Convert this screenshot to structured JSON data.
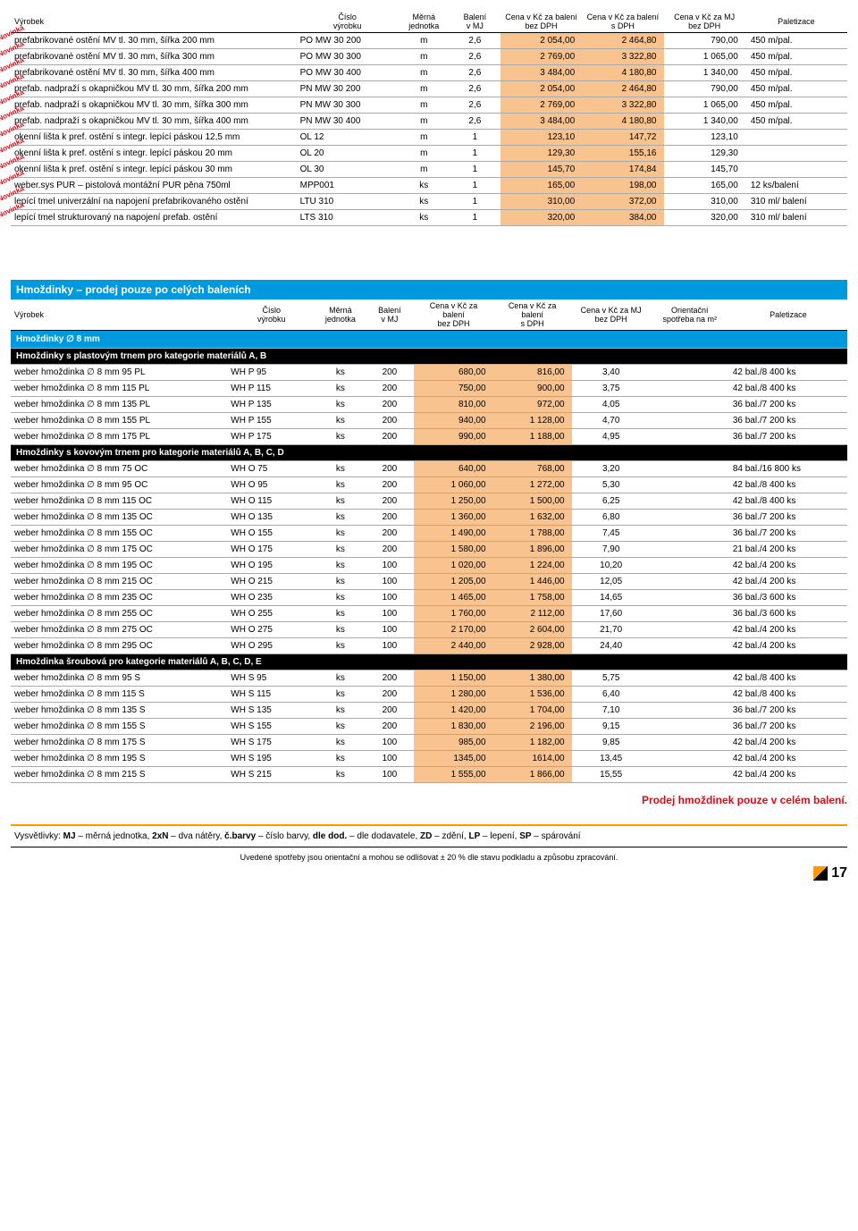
{
  "h1": [
    "Výrobek",
    "Číslo výrobku",
    "Měrná jednotka",
    "Balení v MJ",
    "Cena v Kč za balení bez DPH",
    "Cena v Kč za balení s DPH",
    "Cena v Kč za MJ bez DPH",
    "Paletizace"
  ],
  "t1": [
    [
      "prefabrikované ostění MV tl. 30 mm, šířka 200 mm",
      "PO MW 30 200",
      "m",
      "2,6",
      "2 054,00",
      "2 464,80",
      "790,00",
      "450 m/pal."
    ],
    [
      "prefabrikované ostění MV tl. 30 mm, šířka 300 mm",
      "PO MW 30 300",
      "m",
      "2,6",
      "2 769,00",
      "3 322,80",
      "1 065,00",
      "450 m/pal."
    ],
    [
      "prefabrikované ostění MV tl. 30 mm, šířka 400 mm",
      "PO MW 30 400",
      "m",
      "2,6",
      "3 484,00",
      "4 180,80",
      "1 340,00",
      "450 m/pal."
    ],
    [
      "prefab. nadpraží s okapničkou MV tl. 30 mm, šířka 200 mm",
      "PN MW 30 200",
      "m",
      "2,6",
      "2 054,00",
      "2 464,80",
      "790,00",
      "450 m/pal."
    ],
    [
      "prefab. nadpraží s okapničkou MV tl. 30 mm, šířka 300 mm",
      "PN MW 30 300",
      "m",
      "2,6",
      "2 769,00",
      "3 322,80",
      "1 065,00",
      "450 m/pal."
    ],
    [
      "prefab. nadpraží s okapničkou MV tl. 30 mm, šířka 400 mm",
      "PN MW 30 400",
      "m",
      "2,6",
      "3 484,00",
      "4 180,80",
      "1 340,00",
      "450 m/pal."
    ],
    [
      "okenní lišta k pref. ostění s integr. lepící páskou 12,5 mm",
      "OL 12",
      "m",
      "1",
      "123,10",
      "147,72",
      "123,10",
      ""
    ],
    [
      "okenní lišta k pref. ostění s integr. lepící páskou 20 mm",
      "OL 20",
      "m",
      "1",
      "129,30",
      "155,16",
      "129,30",
      ""
    ],
    [
      "okenní lišta k pref. ostění s integr. lepící páskou 30 mm",
      "OL 30",
      "m",
      "1",
      "145,70",
      "174,84",
      "145,70",
      ""
    ],
    [
      "weber.sys PUR – pistolová montážní PUR pěna 750ml",
      "MPP001",
      "ks",
      "1",
      "165,00",
      "198,00",
      "165,00",
      "12 ks/balení"
    ],
    [
      "lepící tmel univerzální na napojení prefabrikovaného ostění",
      "LTU 310",
      "ks",
      "1",
      "310,00",
      "372,00",
      "310,00",
      "310 ml/ balení"
    ],
    [
      "lepící tmel strukturovaný na napojení prefab. ostění",
      "LTS 310",
      "ks",
      "1",
      "320,00",
      "384,00",
      "320,00",
      "310 ml/ balení"
    ]
  ],
  "blueTitle": "Hmoždinky – prodej pouze po celých baleních",
  "h2": [
    "Výrobek",
    "Číslo výrobku",
    "Měrná jednotka",
    "Balení v MJ",
    "Cena v Kč za balení bez DPH",
    "Cena v Kč za balení s DPH",
    "Cena v Kč za MJ bez DPH",
    "Orientační spotřeba na m²",
    "Paletizace"
  ],
  "cat1": "Hmoždinky ∅ 8 mm",
  "sub1": "Hmoždinky s plastovým trnem pro kategorie materiálů A, B",
  "g1": [
    [
      "weber hmoždinka ∅ 8 mm 95 PL",
      "WH P 95",
      "ks",
      "200",
      "680,00",
      "816,00",
      "3,40",
      "",
      "42 bal./8 400 ks"
    ],
    [
      "weber hmoždinka ∅ 8 mm 115 PL",
      "WH P 115",
      "ks",
      "200",
      "750,00",
      "900,00",
      "3,75",
      "",
      "42 bal./8 400 ks"
    ],
    [
      "weber hmoždinka ∅ 8 mm 135 PL",
      "WH P 135",
      "ks",
      "200",
      "810,00",
      "972,00",
      "4,05",
      "",
      "36 bal./7 200 ks"
    ],
    [
      "weber hmoždinka ∅ 8 mm 155 PL",
      "WH P 155",
      "ks",
      "200",
      "940,00",
      "1 128,00",
      "4,70",
      "",
      "36 bal./7 200 ks"
    ],
    [
      "weber hmoždinka ∅ 8 mm 175 PL",
      "WH P 175",
      "ks",
      "200",
      "990,00",
      "1 188,00",
      "4,95",
      "",
      "36 bal./7 200 ks"
    ]
  ],
  "sub2": "Hmoždinky s kovovým trnem pro kategorie materiálů A, B, C, D",
  "g2": [
    [
      "weber hmoždinka ∅ 8 mm 75 OC",
      "WH O 75",
      "ks",
      "200",
      "640,00",
      "768,00",
      "3,20",
      "",
      "84 bal./16 800 ks"
    ],
    [
      "weber hmoždinka ∅ 8 mm 95 OC",
      "WH O 95",
      "ks",
      "200",
      "1 060,00",
      "1 272,00",
      "5,30",
      "",
      "42 bal./8 400 ks"
    ],
    [
      "weber hmoždinka ∅ 8 mm 115 OC",
      "WH O 115",
      "ks",
      "200",
      "1 250,00",
      "1 500,00",
      "6,25",
      "",
      "42 bal./8 400 ks"
    ],
    [
      "weber hmoždinka ∅ 8 mm 135 OC",
      "WH O 135",
      "ks",
      "200",
      "1 360,00",
      "1 632,00",
      "6,80",
      "",
      "36 bal./7 200 ks"
    ],
    [
      "weber hmoždinka ∅ 8 mm 155 OC",
      "WH O 155",
      "ks",
      "200",
      "1 490,00",
      "1 788,00",
      "7,45",
      "",
      "36 bal./7 200 ks"
    ],
    [
      "weber hmoždinka ∅ 8 mm 175 OC",
      "WH O 175",
      "ks",
      "200",
      "1 580,00",
      "1 896,00",
      "7,90",
      "",
      "21 bal./4 200 ks"
    ],
    [
      "weber hmoždinka ∅ 8 mm 195 OC",
      "WH O 195",
      "ks",
      "100",
      "1 020,00",
      "1 224,00",
      "10,20",
      "",
      "42 bal./4 200 ks"
    ],
    [
      "weber hmoždinka ∅ 8 mm 215 OC",
      "WH O 215",
      "ks",
      "100",
      "1 205,00",
      "1 446,00",
      "12,05",
      "",
      "42 bal./4 200 ks"
    ],
    [
      "weber hmoždinka ∅ 8 mm 235 OC",
      "WH O 235",
      "ks",
      "100",
      "1 465,00",
      "1 758,00",
      "14,65",
      "",
      "36 bal./3 600 ks"
    ],
    [
      "weber hmoždinka ∅ 8 mm 255 OC",
      "WH O 255",
      "ks",
      "100",
      "1 760,00",
      "2 112,00",
      "17,60",
      "",
      "36 bal./3 600 ks"
    ],
    [
      "weber hmoždinka ∅ 8 mm 275 OC",
      "WH O 275",
      "ks",
      "100",
      "2 170,00",
      "2 604,00",
      "21,70",
      "",
      "42 bal./4 200 ks"
    ],
    [
      "weber hmoždinka ∅ 8 mm 295 OC",
      "WH O 295",
      "ks",
      "100",
      "2 440,00",
      "2 928,00",
      "24,40",
      "",
      "42 bal./4 200 ks"
    ]
  ],
  "sub3": "Hmoždinka šroubová pro kategorie materiálů A, B, C, D, E",
  "g3": [
    [
      "weber hmoždinka ∅ 8 mm 95 S",
      "WH S 95",
      "ks",
      "200",
      "1 150,00",
      "1 380,00",
      "5,75",
      "",
      "42 bal./8 400 ks"
    ],
    [
      "weber hmoždinka ∅ 8 mm 115 S",
      "WH S 115",
      "ks",
      "200",
      "1 280,00",
      "1 536,00",
      "6,40",
      "",
      "42 bal./8 400 ks"
    ],
    [
      "weber hmoždinka ∅ 8 mm 135 S",
      "WH S 135",
      "ks",
      "200",
      "1 420,00",
      "1 704,00",
      "7,10",
      "",
      "36 bal./7 200 ks"
    ],
    [
      "weber hmoždinka ∅ 8 mm 155 S",
      "WH S 155",
      "ks",
      "200",
      "1 830,00",
      "2 196,00",
      "9,15",
      "",
      "36 bal./7 200 ks"
    ],
    [
      "weber hmoždinka ∅ 8 mm 175 S",
      "WH S 175",
      "ks",
      "100",
      "985,00",
      "1 182,00",
      "9,85",
      "",
      "42 bal./4 200 ks"
    ],
    [
      "weber hmoždinka ∅ 8 mm 195 S",
      "WH S 195",
      "ks",
      "100",
      "1345,00",
      "1614,00",
      "13,45",
      "",
      "42 bal./4 200 ks"
    ],
    [
      "weber hmoždinka ∅ 8 mm 215 S",
      "WH S 215",
      "ks",
      "100",
      "1 555,00",
      "1 866,00",
      "15,55",
      "",
      "42 bal./4 200 ks"
    ]
  ],
  "redNote": "Prodej hmoždinek pouze v celém balení.",
  "legend": "Vysvětlivky: MJ – měrná jednotka, 2xN – dva nátěry, č.barvy – číslo barvy, dle dod. – dle dodavatele, ZD – zdění, LP – lepení, SP – spárování",
  "subNote": "Uvedené spotřeby jsou orientační a mohou se odlišovat ± 20 % dle stavu podkladu a způsobu zpracování.",
  "page": "17"
}
